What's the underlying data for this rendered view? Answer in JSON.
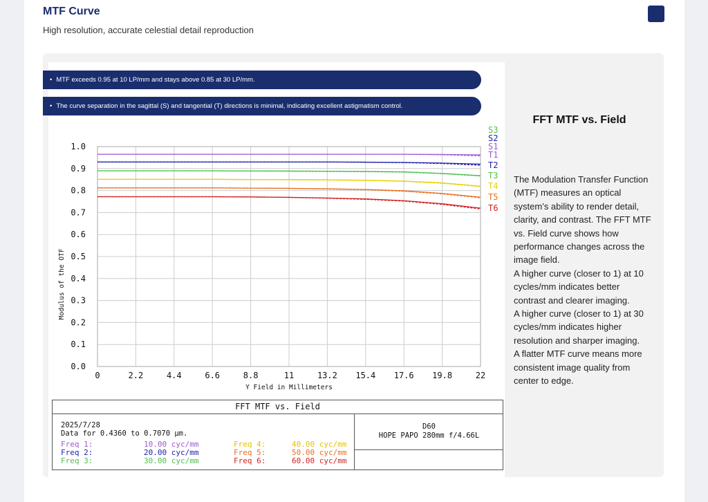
{
  "header": {
    "title": "MTF Curve",
    "subtitle": "High resolution, accurate celestial detail reproduction"
  },
  "notes": [
    "MTF exceeds 0.95 at 10 LP/mm and stays above 0.85 at 30 LP/mm.",
    "The curve separation in the sagittal (S) and tangential (T) directions is minimal, indicating excellent astigmatism control."
  ],
  "side": {
    "heading": "FFT MTF vs. Field",
    "paragraphs": [
      "The Modulation Transfer Function (MTF) measures an optical system’s ability to render detail, clarity, and contrast. The FFT MTF vs. Field curve shows how performance changes across the image field.",
      "A higher curve (closer to 1) at 10 cycles/mm indicates better contrast and clearer imaging.",
      "A higher curve (closer to 1) at 30 cycles/mm indicates higher resolution and sharper imaging.",
      "A flatter MTF curve means more consistent image quality from center to edge."
    ]
  },
  "chart_data": {
    "type": "line",
    "xlabel": "Y Field in Millimeters",
    "ylabel": "Modulus of the OTF",
    "xlim": [
      0,
      22
    ],
    "ylim": [
      0,
      1.0
    ],
    "grid": true,
    "xticks": [
      "0",
      "2.2",
      "4.4",
      "6.6",
      "8.8",
      "11",
      "13.2",
      "15.4",
      "17.6",
      "19.8",
      "22"
    ],
    "yticks": [
      "0.0",
      "0.1",
      "0.2",
      "0.3",
      "0.4",
      "0.5",
      "0.6",
      "0.7",
      "0.8",
      "0.9",
      "1.0"
    ],
    "x": [
      0,
      2.2,
      4.4,
      6.6,
      8.8,
      11,
      13.2,
      15.4,
      17.6,
      19.8,
      22
    ],
    "series": [
      {
        "name": "T1",
        "color": "#9b59d6",
        "dash": false,
        "values": [
          0.965,
          0.965,
          0.965,
          0.965,
          0.965,
          0.965,
          0.965,
          0.965,
          0.965,
          0.964,
          0.962
        ]
      },
      {
        "name": "S1",
        "color": "#9b59d6",
        "dash": true,
        "values": [
          0.965,
          0.965,
          0.965,
          0.965,
          0.965,
          0.965,
          0.965,
          0.965,
          0.965,
          0.963,
          0.958
        ]
      },
      {
        "name": "T2",
        "color": "#2020b0",
        "dash": false,
        "values": [
          0.93,
          0.93,
          0.93,
          0.93,
          0.93,
          0.93,
          0.93,
          0.929,
          0.928,
          0.925,
          0.92
        ]
      },
      {
        "name": "S2",
        "color": "#2020b0",
        "dash": true,
        "values": [
          0.93,
          0.93,
          0.93,
          0.93,
          0.93,
          0.93,
          0.93,
          0.929,
          0.927,
          0.923,
          0.915
        ]
      },
      {
        "name": "T3",
        "color": "#4cc04c",
        "dash": false,
        "values": [
          0.89,
          0.89,
          0.89,
          0.89,
          0.889,
          0.889,
          0.888,
          0.887,
          0.885,
          0.878,
          0.868
        ]
      },
      {
        "name": "S3",
        "color": "#4cc04c",
        "dash": true,
        "values": [
          0.89,
          0.89,
          0.89,
          0.89,
          0.889,
          0.888,
          0.887,
          0.886,
          0.884,
          0.877,
          0.866
        ]
      },
      {
        "name": "T4",
        "color": "#e8d000",
        "dash": false,
        "values": [
          0.851,
          0.851,
          0.851,
          0.851,
          0.85,
          0.85,
          0.849,
          0.847,
          0.843,
          0.835,
          0.82
        ]
      },
      {
        "name": "S4",
        "color": "#e8d000",
        "dash": true,
        "values": [
          0.851,
          0.851,
          0.851,
          0.851,
          0.85,
          0.849,
          0.848,
          0.846,
          0.842,
          0.833,
          0.818
        ]
      },
      {
        "name": "T5",
        "color": "#e87020",
        "dash": false,
        "values": [
          0.812,
          0.812,
          0.812,
          0.812,
          0.811,
          0.81,
          0.808,
          0.805,
          0.799,
          0.787,
          0.77
        ]
      },
      {
        "name": "S5",
        "color": "#e87020",
        "dash": true,
        "values": [
          0.812,
          0.812,
          0.812,
          0.812,
          0.811,
          0.81,
          0.807,
          0.804,
          0.797,
          0.785,
          0.767
        ]
      },
      {
        "name": "T6",
        "color": "#d02020",
        "dash": false,
        "values": [
          0.772,
          0.772,
          0.772,
          0.772,
          0.771,
          0.769,
          0.766,
          0.762,
          0.754,
          0.74,
          0.72
        ]
      },
      {
        "name": "S6",
        "color": "#d02020",
        "dash": true,
        "values": [
          0.772,
          0.772,
          0.772,
          0.772,
          0.771,
          0.769,
          0.765,
          0.76,
          0.752,
          0.737,
          0.716
        ]
      }
    ],
    "labels": [
      {
        "text": "S3",
        "color": "#4cc04c"
      },
      {
        "text": "S2",
        "color": "#2020b0"
      },
      {
        "text": "S1",
        "color": "#9b59d6"
      },
      {
        "text": "T1",
        "color": "#9b59d6"
      },
      {
        "text": "T2",
        "color": "#2020b0"
      },
      {
        "text": "T3",
        "color": "#4cc04c"
      },
      {
        "text": "T4",
        "color": "#e8d000"
      },
      {
        "text": "T5",
        "color": "#e87020"
      },
      {
        "text": "T6",
        "color": "#d02020"
      }
    ]
  },
  "info": {
    "title": "FFT MTF vs. Field",
    "date": "2025/7/28",
    "range": "Data for 0.4360 to 0.7070 µm.",
    "lens_id": "D60",
    "lens_name": "HOPE PAPO 280mm f/4.66L",
    "freqs": [
      {
        "label": "Freq 1:",
        "value": "10.00 cyc/mm",
        "color": "#9b59d6"
      },
      {
        "label": "Freq 2:",
        "value": "20.00 cyc/mm",
        "color": "#2020b0"
      },
      {
        "label": "Freq 3:",
        "value": "30.00 cyc/mm",
        "color": "#4cc04c"
      },
      {
        "label": "Freq 4:",
        "value": "40.00 cyc/mm",
        "color": "#e8c000"
      },
      {
        "label": "Freq 5:",
        "value": "50.00 cyc/mm",
        "color": "#e87020"
      },
      {
        "label": "Freq 6:",
        "value": "60.00 cyc/mm",
        "color": "#d02020"
      }
    ]
  }
}
